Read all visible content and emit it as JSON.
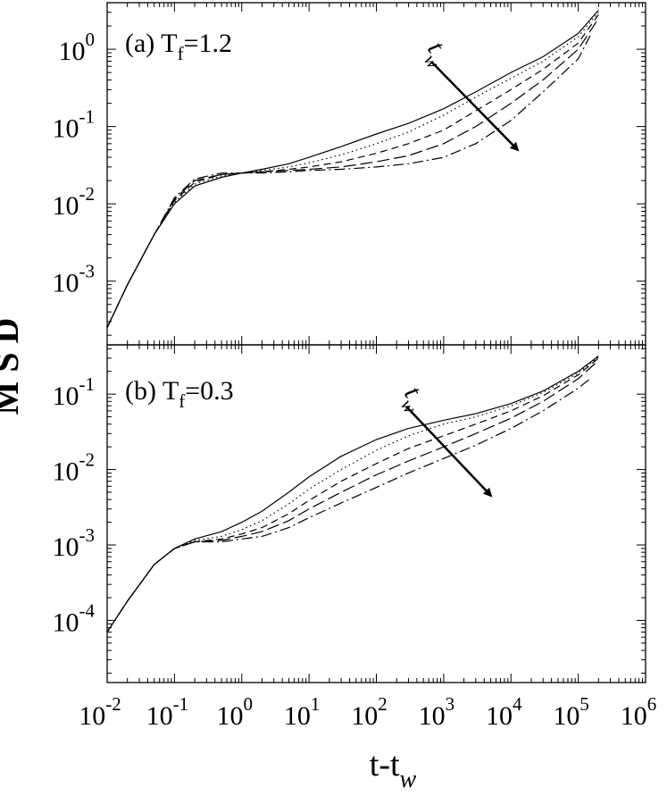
{
  "figure": {
    "ylabel": "M S D",
    "xlabel_main": "t-t",
    "xlabel_sub": "w"
  },
  "chart_data": [
    {
      "type": "line",
      "panel_label": "(a) T",
      "panel_label_sub": "f",
      "panel_label_value": "=1.2",
      "arrow_label": "t",
      "arrow_label_sub": "w",
      "x_scale": "log",
      "y_scale": "log",
      "xlim": [
        0.01,
        1000000
      ],
      "ylim": [
        0.00015,
        4.0
      ],
      "y_ticks": [
        {
          "base": "10",
          "exp": "0",
          "value": 1
        },
        {
          "base": "10",
          "exp": "-1",
          "value": 0.1
        },
        {
          "base": "10",
          "exp": "-2",
          "value": 0.01
        },
        {
          "base": "10",
          "exp": "-3",
          "value": 0.001
        }
      ],
      "grid": false,
      "legend": "none",
      "series": [
        {
          "style": "solid",
          "x": [
            0.01,
            0.02,
            0.05,
            0.1,
            0.2,
            0.5,
            1,
            2,
            5,
            10,
            30,
            100,
            300,
            1000,
            3000,
            10000,
            30000,
            100000,
            200000
          ],
          "y": [
            0.00025,
            0.0009,
            0.004,
            0.01,
            0.017,
            0.022,
            0.025,
            0.028,
            0.033,
            0.04,
            0.055,
            0.08,
            0.11,
            0.17,
            0.28,
            0.5,
            0.8,
            1.6,
            3.2
          ]
        },
        {
          "style": "dotted",
          "x": [
            0.01,
            0.02,
            0.05,
            0.1,
            0.2,
            0.5,
            1,
            2,
            5,
            10,
            30,
            100,
            300,
            1000,
            3000,
            10000,
            30000,
            100000,
            200000
          ],
          "y": [
            0.00025,
            0.0009,
            0.004,
            0.0105,
            0.018,
            0.023,
            0.025,
            0.027,
            0.03,
            0.034,
            0.043,
            0.06,
            0.085,
            0.14,
            0.24,
            0.42,
            0.7,
            1.45,
            3.0
          ]
        },
        {
          "style": "dashed",
          "x": [
            0.01,
            0.02,
            0.05,
            0.1,
            0.2,
            0.5,
            1,
            2,
            5,
            10,
            30,
            100,
            300,
            1000,
            3000,
            10000,
            30000,
            100000,
            200000
          ],
          "y": [
            0.00025,
            0.0009,
            0.004,
            0.011,
            0.019,
            0.024,
            0.025,
            0.026,
            0.028,
            0.03,
            0.035,
            0.045,
            0.06,
            0.09,
            0.16,
            0.3,
            0.55,
            1.2,
            2.8
          ]
        },
        {
          "style": "long-dash",
          "x": [
            0.01,
            0.02,
            0.05,
            0.1,
            0.2,
            0.5,
            1,
            2,
            5,
            10,
            30,
            100,
            300,
            1000,
            3000,
            10000,
            30000,
            100000,
            200000
          ],
          "y": [
            0.00025,
            0.0009,
            0.004,
            0.0115,
            0.02,
            0.024,
            0.025,
            0.026,
            0.027,
            0.028,
            0.03,
            0.035,
            0.042,
            0.06,
            0.1,
            0.2,
            0.4,
            1.0,
            2.5
          ]
        },
        {
          "style": "dash-dot",
          "x": [
            0.01,
            0.02,
            0.05,
            0.1,
            0.2,
            0.5,
            1,
            2,
            5,
            10,
            30,
            100,
            300,
            1000,
            3000,
            10000,
            30000,
            100000,
            150000
          ],
          "y": [
            0.00025,
            0.0009,
            0.004,
            0.012,
            0.021,
            0.025,
            0.025,
            0.025,
            0.026,
            0.027,
            0.028,
            0.03,
            0.033,
            0.04,
            0.06,
            0.12,
            0.28,
            0.75,
            1.5
          ]
        }
      ]
    },
    {
      "type": "line",
      "panel_label": "(b) T",
      "panel_label_sub": "f",
      "panel_label_value": "=0.3",
      "arrow_label": "t",
      "arrow_label_sub": "w",
      "x_scale": "log",
      "y_scale": "log",
      "xlim": [
        0.01,
        1000000
      ],
      "ylim": [
        1.5e-05,
        0.45
      ],
      "x_ticks": [
        {
          "base": "10",
          "exp": "-2",
          "value": 0.01
        },
        {
          "base": "10",
          "exp": "-1",
          "value": 0.1
        },
        {
          "base": "10",
          "exp": "0",
          "value": 1
        },
        {
          "base": "10",
          "exp": "1",
          "value": 10
        },
        {
          "base": "10",
          "exp": "2",
          "value": 100
        },
        {
          "base": "10",
          "exp": "3",
          "value": 1000
        },
        {
          "base": "10",
          "exp": "4",
          "value": 10000
        },
        {
          "base": "10",
          "exp": "5",
          "value": 100000
        },
        {
          "base": "10",
          "exp": "6",
          "value": 1000000
        }
      ],
      "y_ticks": [
        {
          "base": "10",
          "exp": "-1",
          "value": 0.1
        },
        {
          "base": "10",
          "exp": "-2",
          "value": 0.01
        },
        {
          "base": "10",
          "exp": "-3",
          "value": 0.001
        },
        {
          "base": "10",
          "exp": "-4",
          "value": 0.0001
        }
      ],
      "grid": false,
      "legend": "none",
      "series": [
        {
          "style": "solid",
          "x": [
            0.01,
            0.02,
            0.05,
            0.1,
            0.2,
            0.5,
            1,
            2,
            5,
            10,
            30,
            100,
            300,
            1000,
            3000,
            10000,
            30000,
            100000,
            200000
          ],
          "y": [
            7e-05,
            0.00018,
            0.00055,
            0.0009,
            0.0012,
            0.0015,
            0.002,
            0.0028,
            0.005,
            0.008,
            0.015,
            0.025,
            0.035,
            0.045,
            0.055,
            0.075,
            0.11,
            0.2,
            0.32
          ]
        },
        {
          "style": "dotted",
          "x": [
            0.01,
            0.02,
            0.05,
            0.1,
            0.2,
            0.5,
            1,
            2,
            5,
            10,
            30,
            100,
            300,
            1000,
            3000,
            10000,
            30000,
            100000,
            200000
          ],
          "y": [
            7e-05,
            0.00018,
            0.00055,
            0.0009,
            0.00115,
            0.0013,
            0.0016,
            0.0021,
            0.0035,
            0.0055,
            0.01,
            0.018,
            0.028,
            0.04,
            0.05,
            0.07,
            0.105,
            0.19,
            0.31
          ]
        },
        {
          "style": "dashed",
          "x": [
            0.01,
            0.02,
            0.05,
            0.1,
            0.2,
            0.5,
            1,
            2,
            5,
            10,
            30,
            100,
            300,
            1000,
            3000,
            10000,
            30000,
            100000,
            200000
          ],
          "y": [
            7e-05,
            0.00018,
            0.00055,
            0.0009,
            0.0011,
            0.0012,
            0.0014,
            0.0017,
            0.0026,
            0.0039,
            0.007,
            0.012,
            0.019,
            0.028,
            0.04,
            0.06,
            0.095,
            0.18,
            0.3
          ]
        },
        {
          "style": "long-dash",
          "x": [
            0.01,
            0.02,
            0.05,
            0.1,
            0.2,
            0.5,
            1,
            2,
            5,
            10,
            30,
            100,
            300,
            1000,
            3000,
            10000,
            30000,
            100000,
            200000
          ],
          "y": [
            7e-05,
            0.00018,
            0.00055,
            0.0009,
            0.0011,
            0.00115,
            0.0013,
            0.0015,
            0.0021,
            0.003,
            0.005,
            0.0085,
            0.013,
            0.02,
            0.03,
            0.048,
            0.08,
            0.16,
            0.28
          ]
        },
        {
          "style": "dash-dot",
          "x": [
            0.01,
            0.02,
            0.05,
            0.1,
            0.2,
            0.5,
            1,
            2,
            5,
            10,
            30,
            100,
            300,
            1000,
            3000,
            10000,
            30000,
            100000,
            150000
          ],
          "y": [
            7e-05,
            0.00018,
            0.00055,
            0.0009,
            0.0011,
            0.0011,
            0.0012,
            0.0013,
            0.0017,
            0.0023,
            0.0036,
            0.0058,
            0.009,
            0.014,
            0.021,
            0.035,
            0.06,
            0.12,
            0.16
          ]
        }
      ]
    }
  ]
}
